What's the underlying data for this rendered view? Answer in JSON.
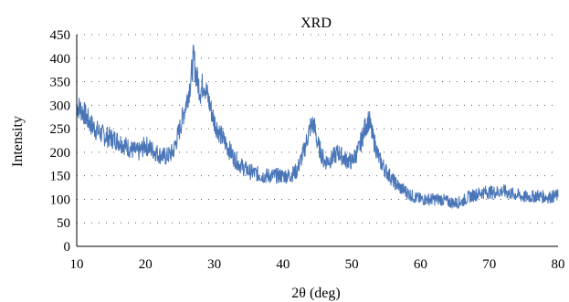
{
  "chart_data": {
    "type": "line",
    "title": "XRD",
    "xlabel": "2θ (deg)",
    "ylabel": "Intensity",
    "xlim": [
      10,
      80
    ],
    "ylim": [
      0,
      450
    ],
    "xticks": [
      10,
      20,
      30,
      40,
      50,
      60,
      70,
      80
    ],
    "yticks": [
      0,
      50,
      100,
      150,
      200,
      250,
      300,
      350,
      400,
      450
    ],
    "grid": "horizontal-dotted",
    "series": [
      {
        "color": "#4a76b8",
        "x": [
          10,
          11,
          12,
          13,
          14,
          15,
          16,
          17,
          18,
          19,
          20,
          21,
          22,
          23,
          24,
          25,
          26,
          26.5,
          27,
          27.5,
          28,
          28.5,
          29,
          30,
          31,
          32,
          33,
          34,
          35,
          36,
          37,
          38,
          39,
          40,
          41,
          42,
          43,
          44,
          44.5,
          45,
          46,
          47,
          48,
          49,
          50,
          51,
          52,
          52.5,
          53,
          54,
          55,
          56,
          57,
          58,
          59,
          60,
          61,
          62,
          63,
          64,
          65,
          66,
          67,
          68,
          69,
          70,
          71,
          72,
          73,
          74,
          75,
          76,
          77,
          78,
          79,
          80
        ],
        "y": [
          300,
          285,
          260,
          245,
          235,
          230,
          225,
          215,
          205,
          200,
          215,
          205,
          195,
          190,
          200,
          250,
          310,
          345,
          400,
          355,
          330,
          350,
          320,
          265,
          235,
          210,
          185,
          170,
          160,
          155,
          150,
          150,
          150,
          150,
          150,
          160,
          200,
          255,
          260,
          220,
          180,
          185,
          200,
          185,
          180,
          205,
          255,
          270,
          235,
          185,
          160,
          140,
          125,
          115,
          105,
          100,
          100,
          100,
          100,
          95,
          92,
          95,
          105,
          110,
          115,
          115,
          115,
          118,
          112,
          110,
          105,
          105,
          108,
          105,
          105,
          108
        ]
      }
    ]
  }
}
